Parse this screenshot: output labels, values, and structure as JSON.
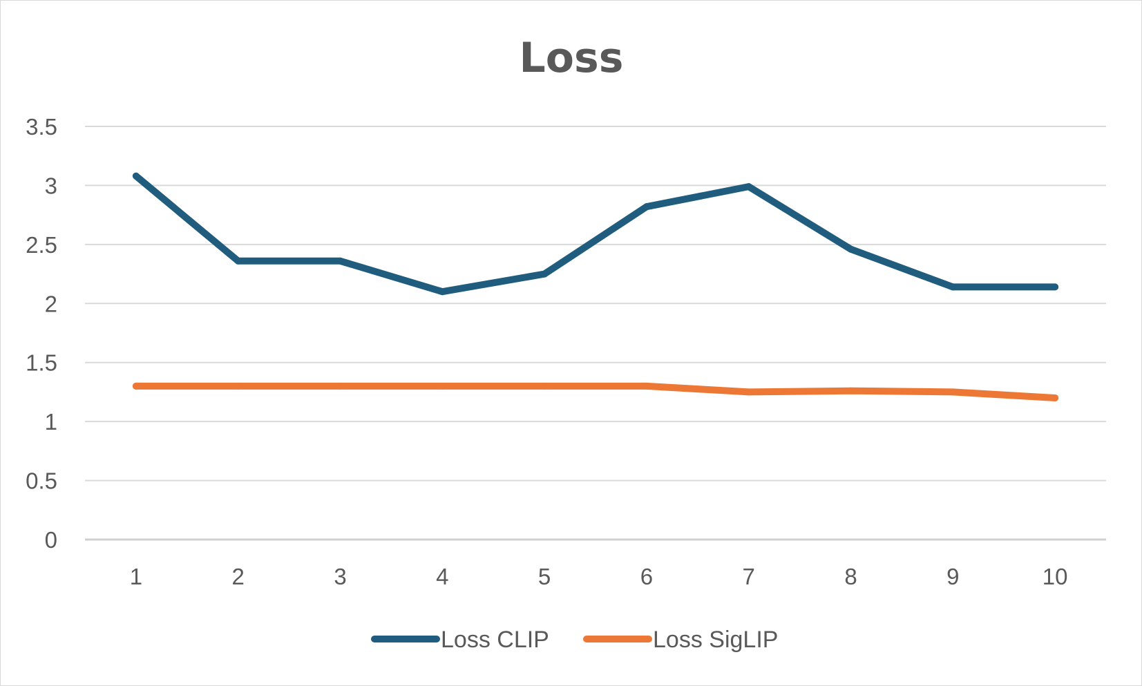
{
  "chart_data": {
    "type": "line",
    "title": "Loss",
    "xlabel": "",
    "ylabel": "",
    "categories": [
      "1",
      "2",
      "3",
      "4",
      "5",
      "6",
      "7",
      "8",
      "9",
      "10"
    ],
    "ylim": [
      0,
      3.5
    ],
    "yticks": [
      "0",
      "0.5",
      "1",
      "1.5",
      "2",
      "2.5",
      "3",
      "3.5"
    ],
    "grid": true,
    "legend_position": "bottom",
    "series": [
      {
        "name": "Loss CLIP",
        "color": "#1f5c7e",
        "values": [
          3.08,
          2.36,
          2.36,
          2.1,
          2.25,
          2.82,
          2.99,
          2.46,
          2.14,
          2.14
        ]
      },
      {
        "name": "Loss SigLIP",
        "color": "#ed7735",
        "values": [
          1.3,
          1.3,
          1.3,
          1.3,
          1.3,
          1.3,
          1.25,
          1.26,
          1.25,
          1.2
        ]
      }
    ]
  }
}
